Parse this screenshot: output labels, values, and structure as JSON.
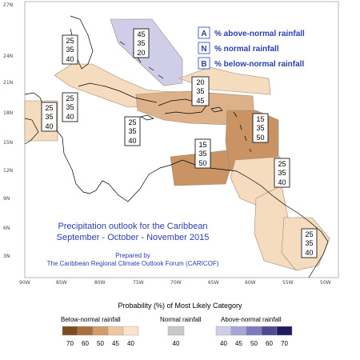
{
  "map": {
    "title_line1": "Precipitation outlook for the Caribbean",
    "title_line2": "September - October - November 2015",
    "prepared_by": "Prepared by",
    "prepared_org": "The Caribbean Regional Climate Outlook Forum (CARICOF)",
    "lat_labels": [
      "27N",
      "24N",
      "21N",
      "18N",
      "15N",
      "12N",
      "9N",
      "6N",
      "3N"
    ],
    "lon_labels": [
      "90W",
      "85W",
      "80W",
      "75W",
      "70W",
      "65W",
      "60W",
      "55W",
      "50W"
    ],
    "key": [
      {
        "letter": "A",
        "text": "% above-normal rainfall"
      },
      {
        "letter": "N",
        "text": "% normal rainfall"
      },
      {
        "letter": "B",
        "text": "% below-normal rainfall"
      }
    ],
    "prob_boxes": [
      {
        "values": [
          "25",
          "35",
          "40"
        ]
      },
      {
        "values": [
          "45",
          "35",
          "20"
        ]
      },
      {
        "values": [
          "25",
          "35",
          "40"
        ]
      },
      {
        "values": [
          "25",
          "35",
          "40"
        ]
      },
      {
        "values": [
          "20",
          "35",
          "45"
        ]
      },
      {
        "values": [
          "25",
          "35",
          "40"
        ]
      },
      {
        "values": [
          "15",
          "35",
          "50"
        ]
      },
      {
        "values": [
          "15",
          "35",
          "50"
        ]
      },
      {
        "values": [
          "25",
          "35",
          "40"
        ]
      },
      {
        "values": [
          "25",
          "35",
          "40"
        ]
      }
    ]
  },
  "legend": {
    "title": "Probability (%) of Most Likely Category",
    "below": {
      "label": "Below-normal rainfall",
      "values": [
        "70",
        "60",
        "50",
        "45",
        "40"
      ],
      "colors": [
        "#7a4e22",
        "#a8713c",
        "#cf9e6c",
        "#ecc8a0",
        "#f9e4cb"
      ]
    },
    "normal": {
      "label": "Normal rainfall",
      "values": [
        "40"
      ],
      "colors": [
        "#c8c8c8"
      ]
    },
    "above": {
      "label": "Above-normal rainfall",
      "values": [
        "40",
        "45",
        "50",
        "60",
        "70"
      ],
      "colors": [
        "#cfcde8",
        "#a7a5d4",
        "#7d7bbd",
        "#4d4a96",
        "#1f1c5e"
      ]
    }
  }
}
